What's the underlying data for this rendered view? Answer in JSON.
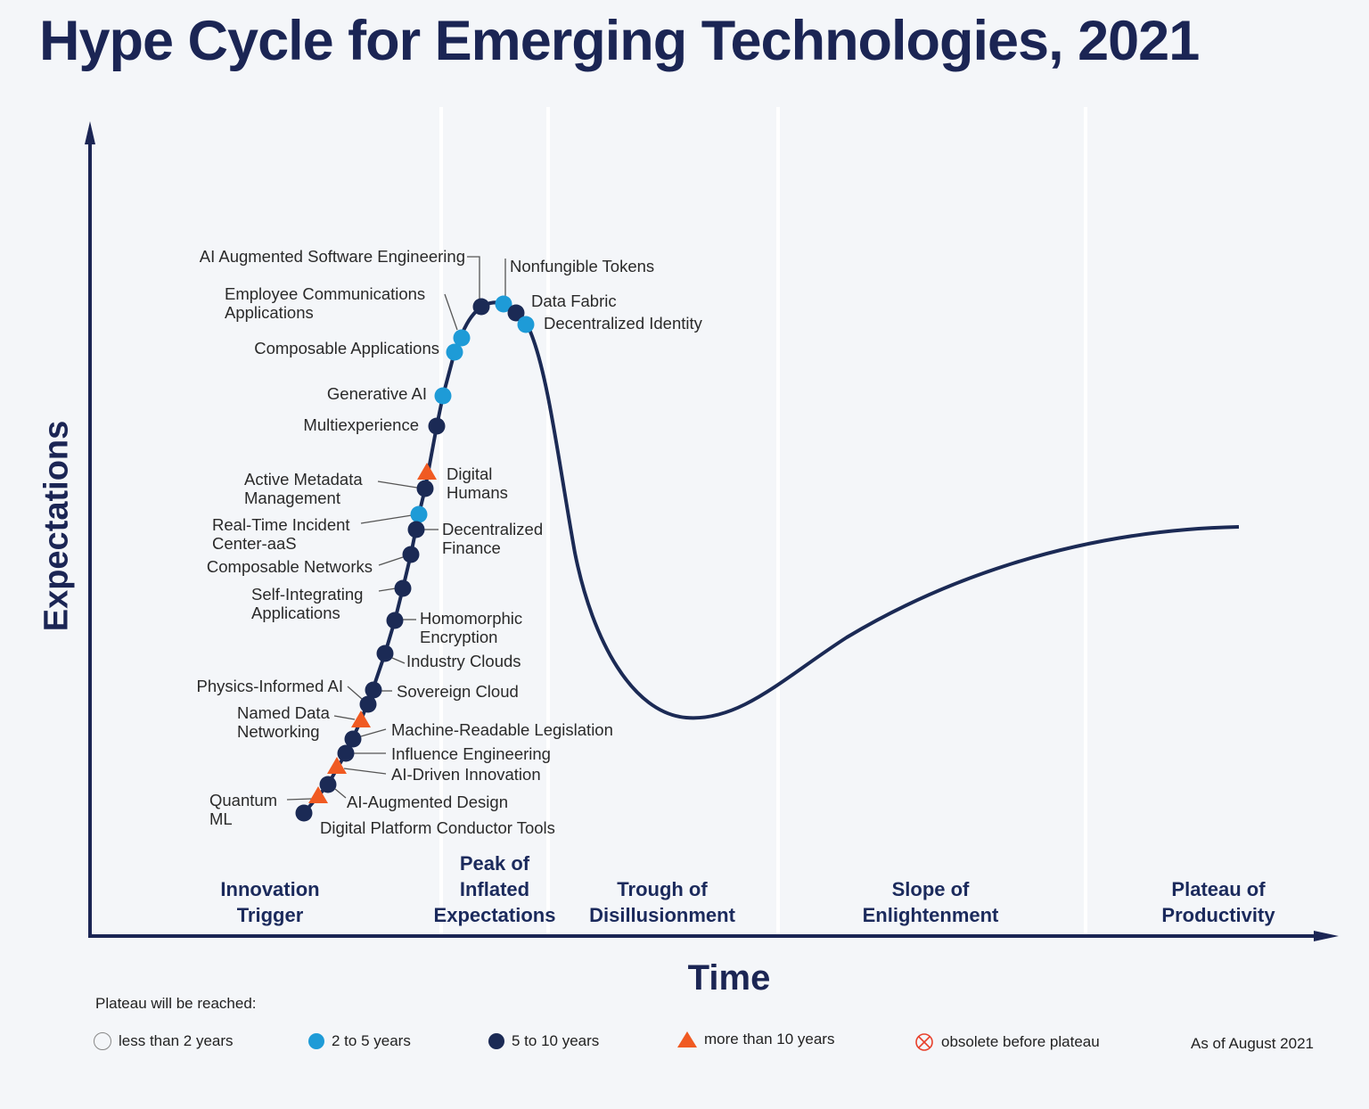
{
  "title": "Hype Cycle for Emerging Technologies, 2021",
  "axes": {
    "y_label": "Expectations",
    "x_label": "Time"
  },
  "phases": [
    "Innovation\nTrigger",
    "Peak of\nInflated\nExpectations",
    "Trough of\nDisillusionment",
    "Slope of\nEnlightenment",
    "Plateau of\nProductivity"
  ],
  "colors": {
    "navy": "#1b2a55",
    "light_blue": "#1e9bd7",
    "orange": "#f05a22",
    "obsolete": "#e8412c"
  },
  "items": [
    {
      "label": "AI Augmented Software Engineering",
      "plateau": "5 to 10 years"
    },
    {
      "label": "Nonfungible Tokens",
      "plateau": "2 to 5 years"
    },
    {
      "label": "Data Fabric",
      "plateau": "5 to 10 years"
    },
    {
      "label": "Decentralized Identity",
      "plateau": "2 to 5 years"
    },
    {
      "label": "Employee Communications\nApplications",
      "plateau": "2 to 5 years"
    },
    {
      "label": "Composable Applications",
      "plateau": "2 to 5 years"
    },
    {
      "label": "Generative AI",
      "plateau": "2 to 5 years"
    },
    {
      "label": "Multiexperience",
      "plateau": "5 to 10 years"
    },
    {
      "label": "Digital\nHumans",
      "plateau": "more than 10 years"
    },
    {
      "label": "Active Metadata\nManagement",
      "plateau": "5 to 10 years"
    },
    {
      "label": "Real-Time Incident\nCenter-aaS",
      "plateau": "2 to 5 years"
    },
    {
      "label": "Decentralized\nFinance",
      "plateau": "5 to 10 years"
    },
    {
      "label": "Composable Networks",
      "plateau": "5 to 10 years"
    },
    {
      "label": "Self-Integrating\nApplications",
      "plateau": "5 to 10 years"
    },
    {
      "label": "Homomorphic\nEncryption",
      "plateau": "5 to 10 years"
    },
    {
      "label": "Industry Clouds",
      "plateau": "5 to 10 years"
    },
    {
      "label": "Sovereign Cloud",
      "plateau": "5 to 10 years"
    },
    {
      "label": "Physics-Informed AI",
      "plateau": "5 to 10 years"
    },
    {
      "label": "Named Data\nNetworking",
      "plateau": "more than 10 years"
    },
    {
      "label": "Machine-Readable Legislation",
      "plateau": "5 to 10 years"
    },
    {
      "label": "Influence Engineering",
      "plateau": "5 to 10 years"
    },
    {
      "label": "AI-Driven Innovation",
      "plateau": "more than 10 years"
    },
    {
      "label": "AI-Augmented Design",
      "plateau": "5 to 10 years"
    },
    {
      "label": "Quantum\nML",
      "plateau": "more than 10 years"
    },
    {
      "label": "Digital Platform Conductor Tools",
      "plateau": "5 to 10 years"
    }
  ],
  "legend": {
    "heading": "Plateau will be reached:",
    "entries": [
      {
        "label": "less than 2 years",
        "symbol": "hollow-circle"
      },
      {
        "label": "2 to 5 years",
        "symbol": "light-blue-circle"
      },
      {
        "label": "5 to 10 years",
        "symbol": "navy-circle"
      },
      {
        "label": "more than 10 years",
        "symbol": "orange-triangle"
      },
      {
        "label": "obsolete before plateau",
        "symbol": "crossed-circle"
      }
    ],
    "as_of": "As of August 2021"
  }
}
